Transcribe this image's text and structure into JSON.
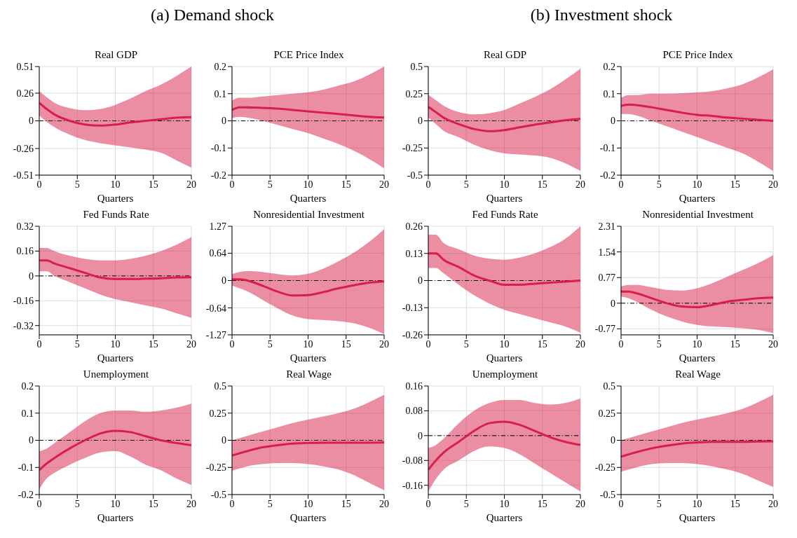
{
  "chart_data": [
    {
      "type": "line",
      "title": "Real GDP",
      "annotations": [
        "(a) Demand shock"
      ],
      "xlabel": "Quarters",
      "x": [
        0,
        1,
        2,
        4,
        6,
        8,
        10,
        12,
        14,
        16,
        18,
        20
      ],
      "xlim": [
        0,
        20
      ],
      "xticks": [
        0,
        5,
        10,
        15,
        20
      ],
      "ylim": [
        -0.51,
        0.51
      ],
      "yticks": [
        -0.51,
        -0.26,
        0,
        0.26,
        0.51
      ],
      "grid": true,
      "legend": false,
      "marker": "none",
      "line_style": "solid",
      "ref_lines": [
        {
          "axis": "y",
          "value": 0,
          "color": "#000000",
          "line_style": "dashed"
        }
      ],
      "series": [
        {
          "color": "#d81e4a",
          "values": [
            0.17,
            0.11,
            0.06,
            0.0,
            -0.035,
            -0.045,
            -0.035,
            -0.015,
            0.0,
            0.015,
            0.03,
            0.035
          ],
          "lower": [
            0.05,
            -0.01,
            -0.06,
            -0.13,
            -0.18,
            -0.21,
            -0.23,
            -0.25,
            -0.27,
            -0.3,
            -0.37,
            -0.44
          ],
          "upper": [
            0.28,
            0.22,
            0.17,
            0.12,
            0.1,
            0.11,
            0.15,
            0.21,
            0.28,
            0.34,
            0.42,
            0.51
          ]
        }
      ]
    },
    {
      "type": "line",
      "title": "PCE Price Index",
      "xlabel": "Quarters",
      "x": [
        0,
        1,
        2,
        4,
        6,
        8,
        10,
        12,
        14,
        16,
        18,
        20
      ],
      "xlim": [
        0,
        20
      ],
      "xticks": [
        0,
        5,
        10,
        15,
        20
      ],
      "ylim": [
        -0.2,
        0.2
      ],
      "yticks": [
        -0.2,
        -0.1,
        0,
        0.1,
        0.2
      ],
      "grid": true,
      "legend": false,
      "marker": "none",
      "line_style": "solid",
      "ref_lines": [
        {
          "axis": "y",
          "value": 0,
          "color": "#000000",
          "line_style": "dashed"
        }
      ],
      "series": [
        {
          "color": "#d81e4a",
          "values": [
            0.04,
            0.05,
            0.05,
            0.048,
            0.045,
            0.04,
            0.035,
            0.03,
            0.025,
            0.02,
            0.015,
            0.012
          ],
          "lower": [
            0.01,
            0.015,
            0.012,
            0.0,
            -0.015,
            -0.03,
            -0.045,
            -0.065,
            -0.085,
            -0.11,
            -0.14,
            -0.175
          ],
          "upper": [
            0.075,
            0.085,
            0.085,
            0.09,
            0.095,
            0.1,
            0.105,
            0.115,
            0.13,
            0.145,
            0.17,
            0.2
          ]
        }
      ]
    },
    {
      "type": "line",
      "title": "Fed Funds Rate",
      "xlabel": "Quarters",
      "x": [
        0,
        1,
        2,
        4,
        6,
        8,
        10,
        12,
        14,
        16,
        18,
        20
      ],
      "xlim": [
        0,
        20
      ],
      "xticks": [
        0,
        5,
        10,
        15,
        20
      ],
      "ylim": [
        -0.38,
        0.32
      ],
      "yticks": [
        -0.32,
        -0.16,
        0,
        0.16,
        0.32
      ],
      "grid": true,
      "legend": false,
      "marker": "none",
      "line_style": "solid",
      "ref_lines": [
        {
          "axis": "y",
          "value": 0,
          "color": "#000000",
          "line_style": "dashed"
        }
      ],
      "series": [
        {
          "color": "#d81e4a",
          "values": [
            0.1,
            0.1,
            0.08,
            0.05,
            0.02,
            -0.01,
            -0.02,
            -0.02,
            -0.018,
            -0.015,
            -0.01,
            -0.008
          ],
          "lower": [
            0.03,
            0.03,
            0.0,
            -0.04,
            -0.08,
            -0.12,
            -0.15,
            -0.17,
            -0.19,
            -0.21,
            -0.24,
            -0.27
          ],
          "upper": [
            0.18,
            0.18,
            0.16,
            0.13,
            0.11,
            0.1,
            0.1,
            0.11,
            0.13,
            0.16,
            0.2,
            0.25
          ]
        }
      ]
    },
    {
      "type": "line",
      "title": "Nonresidential Investment",
      "xlabel": "Quarters",
      "x": [
        0,
        1,
        2,
        4,
        6,
        8,
        10,
        12,
        14,
        16,
        18,
        20
      ],
      "xlim": [
        0,
        20
      ],
      "xticks": [
        0,
        5,
        10,
        15,
        20
      ],
      "ylim": [
        -1.27,
        1.27
      ],
      "yticks": [
        -1.27,
        -0.64,
        0,
        0.64,
        1.27
      ],
      "grid": true,
      "legend": false,
      "marker": "none",
      "line_style": "solid",
      "ref_lines": [
        {
          "axis": "y",
          "value": 0,
          "color": "#000000",
          "line_style": "dashed"
        }
      ],
      "series": [
        {
          "color": "#d81e4a",
          "values": [
            0.03,
            0.03,
            0.0,
            -0.12,
            -0.26,
            -0.35,
            -0.34,
            -0.27,
            -0.18,
            -0.11,
            -0.05,
            -0.02
          ],
          "lower": [
            -0.12,
            -0.18,
            -0.25,
            -0.45,
            -0.65,
            -0.82,
            -0.9,
            -0.92,
            -0.95,
            -1.0,
            -1.1,
            -1.25
          ],
          "upper": [
            0.15,
            0.2,
            0.22,
            0.2,
            0.15,
            0.12,
            0.16,
            0.28,
            0.45,
            0.65,
            0.9,
            1.2
          ]
        }
      ]
    },
    {
      "type": "line",
      "title": "Unemployment",
      "xlabel": "Quarters",
      "x": [
        0,
        1,
        2,
        4,
        6,
        8,
        10,
        12,
        14,
        16,
        18,
        20
      ],
      "xlim": [
        0,
        20
      ],
      "xticks": [
        0,
        5,
        10,
        15,
        20
      ],
      "ylim": [
        -0.2,
        0.2
      ],
      "yticks": [
        -0.2,
        -0.1,
        0,
        0.1,
        0.2
      ],
      "grid": true,
      "legend": false,
      "marker": "none",
      "line_style": "solid",
      "ref_lines": [
        {
          "axis": "y",
          "value": 0,
          "color": "#000000",
          "line_style": "dashed"
        }
      ],
      "series": [
        {
          "color": "#d81e4a",
          "values": [
            -0.11,
            -0.085,
            -0.065,
            -0.03,
            0.0,
            0.025,
            0.035,
            0.03,
            0.015,
            0.0,
            -0.01,
            -0.018
          ],
          "lower": [
            -0.18,
            -0.14,
            -0.12,
            -0.09,
            -0.065,
            -0.045,
            -0.04,
            -0.06,
            -0.09,
            -0.11,
            -0.14,
            -0.165
          ],
          "upper": [
            -0.04,
            -0.03,
            -0.01,
            0.03,
            0.07,
            0.1,
            0.11,
            0.11,
            0.105,
            0.11,
            0.12,
            0.135
          ]
        }
      ]
    },
    {
      "type": "line",
      "title": "Real Wage",
      "xlabel": "Quarters",
      "x": [
        0,
        1,
        2,
        4,
        6,
        8,
        10,
        12,
        14,
        16,
        18,
        20
      ],
      "xlim": [
        0,
        20
      ],
      "xticks": [
        0,
        5,
        10,
        15,
        20
      ],
      "ylim": [
        -0.5,
        0.5
      ],
      "yticks": [
        -0.5,
        -0.25,
        0,
        0.25,
        0.5
      ],
      "grid": true,
      "legend": false,
      "marker": "none",
      "line_style": "solid",
      "ref_lines": [
        {
          "axis": "y",
          "value": 0,
          "color": "#000000",
          "line_style": "dashed"
        }
      ],
      "series": [
        {
          "color": "#d81e4a",
          "values": [
            -0.14,
            -0.12,
            -0.1,
            -0.065,
            -0.045,
            -0.03,
            -0.025,
            -0.022,
            -0.022,
            -0.022,
            -0.022,
            -0.02
          ],
          "lower": [
            -0.28,
            -0.26,
            -0.24,
            -0.22,
            -0.21,
            -0.21,
            -0.22,
            -0.24,
            -0.27,
            -0.32,
            -0.39,
            -0.46
          ],
          "upper": [
            0.0,
            0.02,
            0.04,
            0.08,
            0.12,
            0.16,
            0.19,
            0.22,
            0.25,
            0.29,
            0.35,
            0.42
          ]
        }
      ]
    },
    {
      "type": "line",
      "title": "Real GDP",
      "annotations": [
        "(b) Investment shock"
      ],
      "xlabel": "Quarters",
      "x": [
        0,
        1,
        2,
        4,
        6,
        8,
        10,
        12,
        14,
        16,
        18,
        20
      ],
      "xlim": [
        0,
        20
      ],
      "xticks": [
        0,
        5,
        10,
        15,
        20
      ],
      "ylim": [
        -0.5,
        0.5
      ],
      "yticks": [
        -0.5,
        -0.25,
        0,
        0.25,
        0.5
      ],
      "grid": true,
      "legend": false,
      "marker": "none",
      "line_style": "solid",
      "ref_lines": [
        {
          "axis": "y",
          "value": 0,
          "color": "#000000",
          "line_style": "dashed"
        }
      ],
      "series": [
        {
          "color": "#d81e4a",
          "values": [
            0.13,
            0.08,
            0.03,
            -0.03,
            -0.075,
            -0.095,
            -0.085,
            -0.06,
            -0.035,
            -0.015,
            0.005,
            0.02
          ],
          "lower": [
            0.03,
            -0.03,
            -0.09,
            -0.15,
            -0.22,
            -0.27,
            -0.3,
            -0.31,
            -0.32,
            -0.34,
            -0.39,
            -0.46
          ],
          "upper": [
            0.24,
            0.19,
            0.14,
            0.08,
            0.06,
            0.07,
            0.1,
            0.16,
            0.22,
            0.29,
            0.38,
            0.48
          ]
        }
      ]
    },
    {
      "type": "line",
      "title": "PCE Price Index",
      "xlabel": "Quarters",
      "x": [
        0,
        1,
        2,
        4,
        6,
        8,
        10,
        12,
        14,
        16,
        18,
        20
      ],
      "xlim": [
        0,
        20
      ],
      "xticks": [
        0,
        5,
        10,
        15,
        20
      ],
      "ylim": [
        -0.2,
        0.2
      ],
      "yticks": [
        -0.2,
        -0.1,
        0,
        0.1,
        0.2
      ],
      "grid": true,
      "legend": false,
      "marker": "none",
      "line_style": "solid",
      "ref_lines": [
        {
          "axis": "y",
          "value": 0,
          "color": "#000000",
          "line_style": "dashed"
        }
      ],
      "series": [
        {
          "color": "#d81e4a",
          "values": [
            0.055,
            0.06,
            0.058,
            0.05,
            0.04,
            0.03,
            0.022,
            0.018,
            0.012,
            0.008,
            0.004,
            0.0
          ],
          "lower": [
            0.025,
            0.025,
            0.02,
            0.0,
            -0.02,
            -0.04,
            -0.06,
            -0.08,
            -0.1,
            -0.12,
            -0.15,
            -0.185
          ],
          "upper": [
            0.085,
            0.095,
            0.095,
            0.1,
            0.1,
            0.102,
            0.105,
            0.11,
            0.12,
            0.135,
            0.16,
            0.19
          ]
        }
      ]
    },
    {
      "type": "line",
      "title": "Fed Funds Rate",
      "xlabel": "Quarters",
      "x": [
        0,
        1,
        2,
        4,
        6,
        8,
        10,
        12,
        14,
        16,
        18,
        20
      ],
      "xlim": [
        0,
        20
      ],
      "xticks": [
        0,
        5,
        10,
        15,
        20
      ],
      "ylim": [
        -0.26,
        0.26
      ],
      "yticks": [
        -0.26,
        -0.13,
        0,
        0.13,
        0.26
      ],
      "grid": true,
      "legend": false,
      "marker": "none",
      "line_style": "solid",
      "ref_lines": [
        {
          "axis": "y",
          "value": 0,
          "color": "#000000",
          "line_style": "dashed"
        }
      ],
      "series": [
        {
          "color": "#d81e4a",
          "values": [
            0.13,
            0.13,
            0.1,
            0.065,
            0.025,
            0.0,
            -0.02,
            -0.02,
            -0.015,
            -0.01,
            -0.005,
            0.0
          ],
          "lower": [
            0.06,
            0.06,
            0.035,
            -0.02,
            -0.07,
            -0.11,
            -0.14,
            -0.16,
            -0.18,
            -0.2,
            -0.22,
            -0.25
          ],
          "upper": [
            0.22,
            0.22,
            0.18,
            0.15,
            0.12,
            0.105,
            0.1,
            0.11,
            0.13,
            0.16,
            0.2,
            0.26
          ]
        }
      ]
    },
    {
      "type": "line",
      "title": "Nonresidential Investment",
      "xlabel": "Quarters",
      "x": [
        0,
        1,
        2,
        4,
        6,
        8,
        10,
        12,
        14,
        16,
        18,
        20
      ],
      "xlim": [
        0,
        20
      ],
      "xticks": [
        0,
        5,
        10,
        15,
        20
      ],
      "ylim": [
        -0.95,
        2.31
      ],
      "yticks": [
        -0.77,
        0,
        0.77,
        1.54,
        2.31
      ],
      "grid": true,
      "legend": false,
      "marker": "none",
      "line_style": "solid",
      "ref_lines": [
        {
          "axis": "y",
          "value": 0,
          "color": "#000000",
          "line_style": "dashed"
        }
      ],
      "series": [
        {
          "color": "#d81e4a",
          "values": [
            0.35,
            0.35,
            0.3,
            0.15,
            0.0,
            -0.1,
            -0.12,
            -0.05,
            0.05,
            0.1,
            0.15,
            0.17
          ],
          "lower": [
            0.2,
            0.15,
            0.05,
            -0.2,
            -0.4,
            -0.55,
            -0.65,
            -0.7,
            -0.72,
            -0.75,
            -0.8,
            -0.9
          ],
          "upper": [
            0.5,
            0.55,
            0.55,
            0.48,
            0.4,
            0.38,
            0.45,
            0.6,
            0.8,
            1.0,
            1.2,
            1.45
          ]
        }
      ]
    },
    {
      "type": "line",
      "title": "Unemployment",
      "xlabel": "Quarters",
      "x": [
        0,
        1,
        2,
        4,
        6,
        8,
        10,
        12,
        14,
        16,
        18,
        20
      ],
      "xlim": [
        0,
        20
      ],
      "xticks": [
        0,
        5,
        10,
        15,
        20
      ],
      "ylim": [
        -0.19,
        0.16
      ],
      "yticks": [
        -0.16,
        -0.08,
        0,
        0.08,
        0.16
      ],
      "grid": true,
      "legend": false,
      "marker": "none",
      "line_style": "solid",
      "ref_lines": [
        {
          "axis": "y",
          "value": 0,
          "color": "#000000",
          "line_style": "dashed"
        }
      ],
      "series": [
        {
          "color": "#d81e4a",
          "values": [
            -0.11,
            -0.08,
            -0.055,
            -0.02,
            0.015,
            0.04,
            0.045,
            0.035,
            0.015,
            -0.005,
            -0.02,
            -0.03
          ],
          "lower": [
            -0.18,
            -0.14,
            -0.11,
            -0.08,
            -0.05,
            -0.035,
            -0.04,
            -0.06,
            -0.09,
            -0.12,
            -0.15,
            -0.18
          ],
          "upper": [
            -0.04,
            -0.03,
            -0.01,
            0.04,
            0.08,
            0.105,
            0.115,
            0.115,
            0.105,
            0.1,
            0.105,
            0.12
          ]
        }
      ]
    },
    {
      "type": "line",
      "title": "Real Wage",
      "xlabel": "Quarters",
      "x": [
        0,
        1,
        2,
        4,
        6,
        8,
        10,
        12,
        14,
        16,
        18,
        20
      ],
      "xlim": [
        0,
        20
      ],
      "xticks": [
        0,
        5,
        10,
        15,
        20
      ],
      "ylim": [
        -0.5,
        0.5
      ],
      "yticks": [
        -0.5,
        -0.25,
        0,
        0.25,
        0.5
      ],
      "grid": true,
      "legend": false,
      "marker": "none",
      "line_style": "solid",
      "ref_lines": [
        {
          "axis": "y",
          "value": 0,
          "color": "#000000",
          "line_style": "dashed"
        }
      ],
      "series": [
        {
          "color": "#d81e4a",
          "values": [
            -0.15,
            -0.13,
            -0.11,
            -0.075,
            -0.05,
            -0.03,
            -0.02,
            -0.015,
            -0.015,
            -0.015,
            -0.012,
            -0.01
          ],
          "lower": [
            -0.29,
            -0.27,
            -0.25,
            -0.22,
            -0.21,
            -0.21,
            -0.22,
            -0.24,
            -0.27,
            -0.31,
            -0.37,
            -0.43
          ],
          "upper": [
            0.0,
            0.02,
            0.04,
            0.08,
            0.12,
            0.16,
            0.19,
            0.22,
            0.25,
            0.29,
            0.35,
            0.42
          ]
        }
      ]
    }
  ]
}
